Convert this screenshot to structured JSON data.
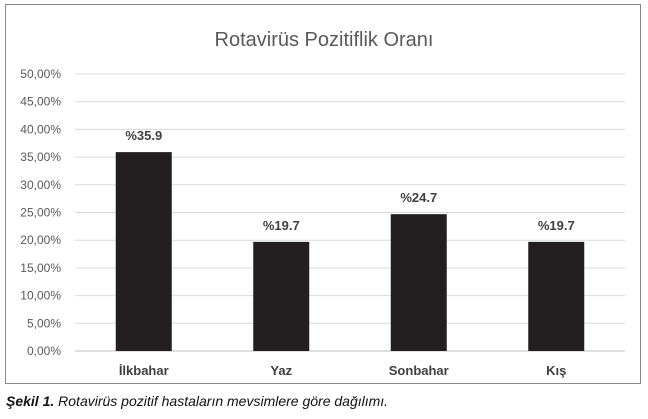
{
  "chart_data": {
    "type": "bar",
    "title": "Rotavirüs Pozitiflik Oranı",
    "categories": [
      "İlkbahar",
      "Yaz",
      "Sonbahar",
      "Kış"
    ],
    "values": [
      35.9,
      19.7,
      24.7,
      19.7
    ],
    "data_labels": [
      "%35.9",
      "%19.7",
      "%24.7",
      "%19.7"
    ],
    "y_ticks": [
      "0,00%",
      "5,00%",
      "10,00%",
      "15,00%",
      "20,00%",
      "25,00%",
      "30,00%",
      "35,00%",
      "40,00%",
      "45,00%",
      "50,00%"
    ],
    "ylim": [
      0,
      50
    ],
    "grid": true,
    "legend": "none",
    "bar_color": "#231f20"
  },
  "caption": {
    "label": "Şekil 1.",
    "text": "Rotavirüs pozitif hastaların mevsimlere göre dağılımı."
  }
}
